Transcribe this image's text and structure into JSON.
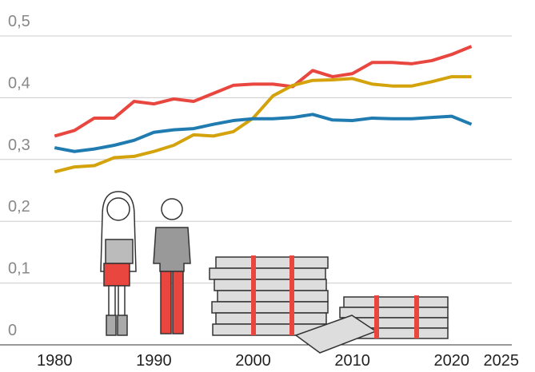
{
  "chart_data": {
    "type": "line",
    "x": [
      1980,
      1982,
      1984,
      1986,
      1988,
      1990,
      1992,
      1994,
      1996,
      1998,
      2000,
      2002,
      2004,
      2006,
      2008,
      2010,
      2012,
      2014,
      2016,
      2018,
      2020,
      2022
    ],
    "series": [
      {
        "color": "#e8463f",
        "values": [
          0.338,
          0.347,
          0.367,
          0.367,
          0.394,
          0.39,
          0.398,
          0.394,
          0.407,
          0.42,
          0.422,
          0.422,
          0.418,
          0.444,
          0.434,
          0.439,
          0.457,
          0.457,
          0.455,
          0.46,
          0.47,
          0.483
        ]
      },
      {
        "color": "#d4a20a",
        "values": [
          0.28,
          0.288,
          0.29,
          0.303,
          0.305,
          0.313,
          0.323,
          0.34,
          0.338,
          0.345,
          0.367,
          0.403,
          0.42,
          0.428,
          0.429,
          0.431,
          0.422,
          0.419,
          0.419,
          0.426,
          0.434,
          0.434
        ]
      },
      {
        "color": "#1f7bb0",
        "values": [
          0.319,
          0.313,
          0.317,
          0.323,
          0.331,
          0.344,
          0.348,
          0.35,
          0.357,
          0.363,
          0.366,
          0.366,
          0.368,
          0.373,
          0.364,
          0.363,
          0.367,
          0.366,
          0.366,
          0.368,
          0.37,
          0.357
        ]
      }
    ],
    "xlim": [
      1974.5,
      2028.4
    ],
    "xticks": [
      1980,
      1990,
      2000,
      2010,
      2020,
      2025
    ],
    "ylim": [
      0,
      0.5
    ],
    "yticks": [
      0,
      {
        "value": 0.1,
        "label": "0,1"
      },
      {
        "value": 0.2,
        "label": "0,2"
      },
      {
        "value": 0.3,
        "label": "0,3"
      },
      {
        "value": 0.4,
        "label": "0,4"
      },
      {
        "value": 0.5,
        "label": "0,5"
      }
    ],
    "grid": true
  }
}
